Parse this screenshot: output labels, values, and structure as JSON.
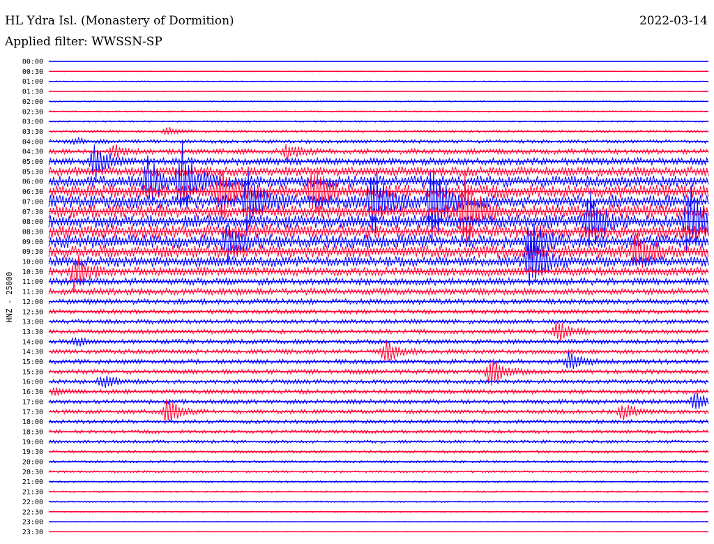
{
  "header": {
    "station": "HL Ydra Isl. (Monastery of Dormition)",
    "date": "2022-03-14",
    "filter": "Applied filter: WWSSN-SP"
  },
  "chart_data": {
    "type": "line",
    "ylabel": "HNZ - 25000",
    "colors": {
      "odd_rows": "#0000ff",
      "even_rows": "#ff0033"
    },
    "tick_labels": [
      "00:00",
      "00:30",
      "01:00",
      "01:30",
      "02:00",
      "02:30",
      "03:00",
      "03:30",
      "04:00",
      "04:30",
      "05:00",
      "05:30",
      "06:00",
      "06:30",
      "07:00",
      "07:30",
      "08:00",
      "08:30",
      "09:00",
      "09:30",
      "10:00",
      "10:30",
      "11:00",
      "11:30",
      "12:00",
      "12:30",
      "13:00",
      "13:30",
      "14:00",
      "14:30",
      "15:00",
      "15:30",
      "16:00",
      "16:30",
      "17:00",
      "17:30",
      "18:00",
      "18:30",
      "19:00",
      "19:30",
      "20:00",
      "20:30",
      "21:00",
      "21:30",
      "22:00",
      "22:30",
      "23:00",
      "23:30"
    ],
    "noise_amplitude": [
      0.4,
      0.5,
      0.6,
      0.6,
      0.7,
      0.8,
      0.9,
      1.4,
      2.0,
      3.0,
      4.0,
      5.5,
      6.5,
      7.5,
      7.5,
      7.5,
      7.5,
      7.5,
      7.5,
      7.0,
      6.0,
      5.0,
      4.0,
      3.6,
      3.0,
      2.6,
      2.5,
      2.5,
      2.6,
      2.6,
      2.6,
      2.6,
      2.5,
      2.5,
      2.5,
      2.4,
      2.2,
      2.0,
      1.8,
      1.6,
      1.4,
      1.2,
      1.0,
      0.9,
      0.8,
      0.7,
      0.5,
      0.4
    ],
    "events": [
      {
        "row": 7,
        "t": 0.18,
        "amp": 6
      },
      {
        "row": 9,
        "t": 0.1,
        "amp": 8
      },
      {
        "row": 9,
        "t": 0.36,
        "amp": 12
      },
      {
        "row": 8,
        "t": 0.04,
        "amp": 4
      },
      {
        "row": 10,
        "t": 0.07,
        "amp": 30
      },
      {
        "row": 12,
        "t": 0.15,
        "amp": 35
      },
      {
        "row": 12,
        "t": 0.2,
        "amp": 60
      },
      {
        "row": 13,
        "t": 0.26,
        "amp": 40
      },
      {
        "row": 13,
        "t": 0.4,
        "amp": 45
      },
      {
        "row": 14,
        "t": 0.3,
        "amp": 50
      },
      {
        "row": 14,
        "t": 0.49,
        "amp": 55
      },
      {
        "row": 14,
        "t": 0.58,
        "amp": 70
      },
      {
        "row": 15,
        "t": 0.63,
        "amp": 55
      },
      {
        "row": 16,
        "t": 0.82,
        "amp": 40
      },
      {
        "row": 16,
        "t": 0.97,
        "amp": 60
      },
      {
        "row": 18,
        "t": 0.27,
        "amp": 30
      },
      {
        "row": 18,
        "t": 0.73,
        "amp": 30
      },
      {
        "row": 19,
        "t": 0.89,
        "amp": 35
      },
      {
        "row": 20,
        "t": 0.73,
        "amp": 45
      },
      {
        "row": 21,
        "t": 0.04,
        "amp": 30
      },
      {
        "row": 27,
        "t": 0.77,
        "amp": 18
      },
      {
        "row": 29,
        "t": 0.51,
        "amp": 18
      },
      {
        "row": 30,
        "t": 0.79,
        "amp": 16
      },
      {
        "row": 31,
        "t": 0.67,
        "amp": 22
      },
      {
        "row": 32,
        "t": 0.08,
        "amp": 12
      },
      {
        "row": 34,
        "t": 0.98,
        "amp": 15
      },
      {
        "row": 35,
        "t": 0.18,
        "amp": 20
      },
      {
        "row": 35,
        "t": 0.87,
        "amp": 14
      },
      {
        "row": 33,
        "t": 0.01,
        "amp": 6
      },
      {
        "row": 28,
        "t": 0.04,
        "amp": 6
      }
    ]
  }
}
